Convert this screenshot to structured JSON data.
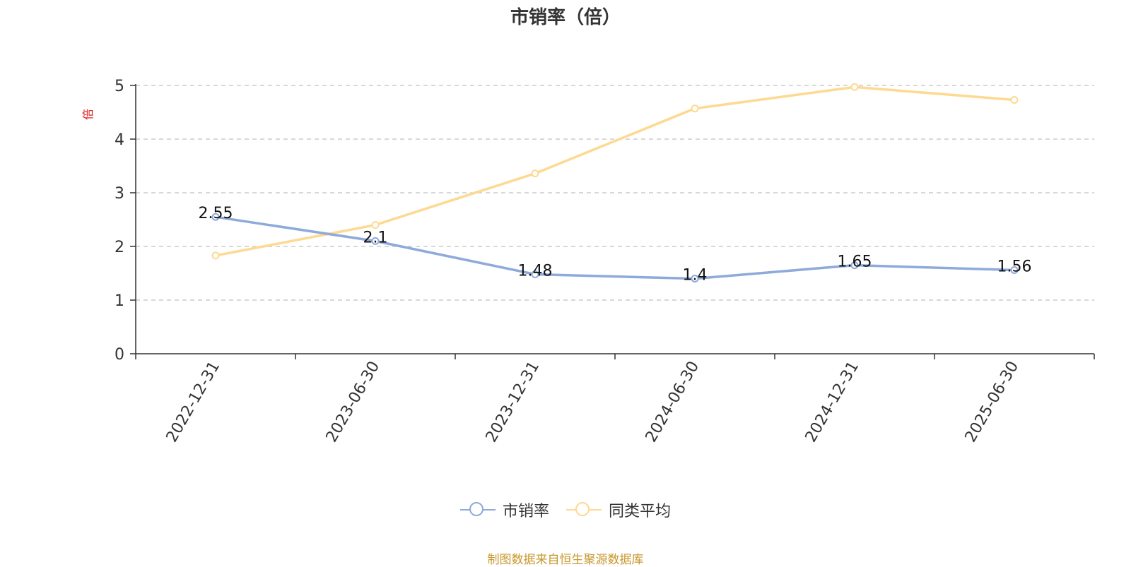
{
  "chart_data": {
    "type": "line",
    "title": "市销率（倍）",
    "ylabel": "倍",
    "xlabel": "",
    "categories": [
      "2022-12-31",
      "2023-06-30",
      "2023-12-31",
      "2024-06-30",
      "2024-12-31",
      "2025-06-30"
    ],
    "ylim": [
      0,
      5
    ],
    "yticks": [
      0,
      1,
      2,
      3,
      4,
      5
    ],
    "grid": true,
    "legend_position": "bottom",
    "series": [
      {
        "name": "市销率",
        "color": "#8eaadb",
        "values": [
          2.55,
          2.1,
          1.48,
          1.4,
          1.65,
          1.56
        ],
        "labels": [
          "2.55",
          "2.1",
          "1.48",
          "1.4",
          "1.65",
          "1.56"
        ]
      },
      {
        "name": "同类平均",
        "color": "#fdd992",
        "values": [
          1.83,
          2.4,
          3.36,
          4.57,
          4.97,
          4.73
        ]
      }
    ]
  },
  "footer": {
    "source": "制图数据来自恒生聚源数据库"
  }
}
